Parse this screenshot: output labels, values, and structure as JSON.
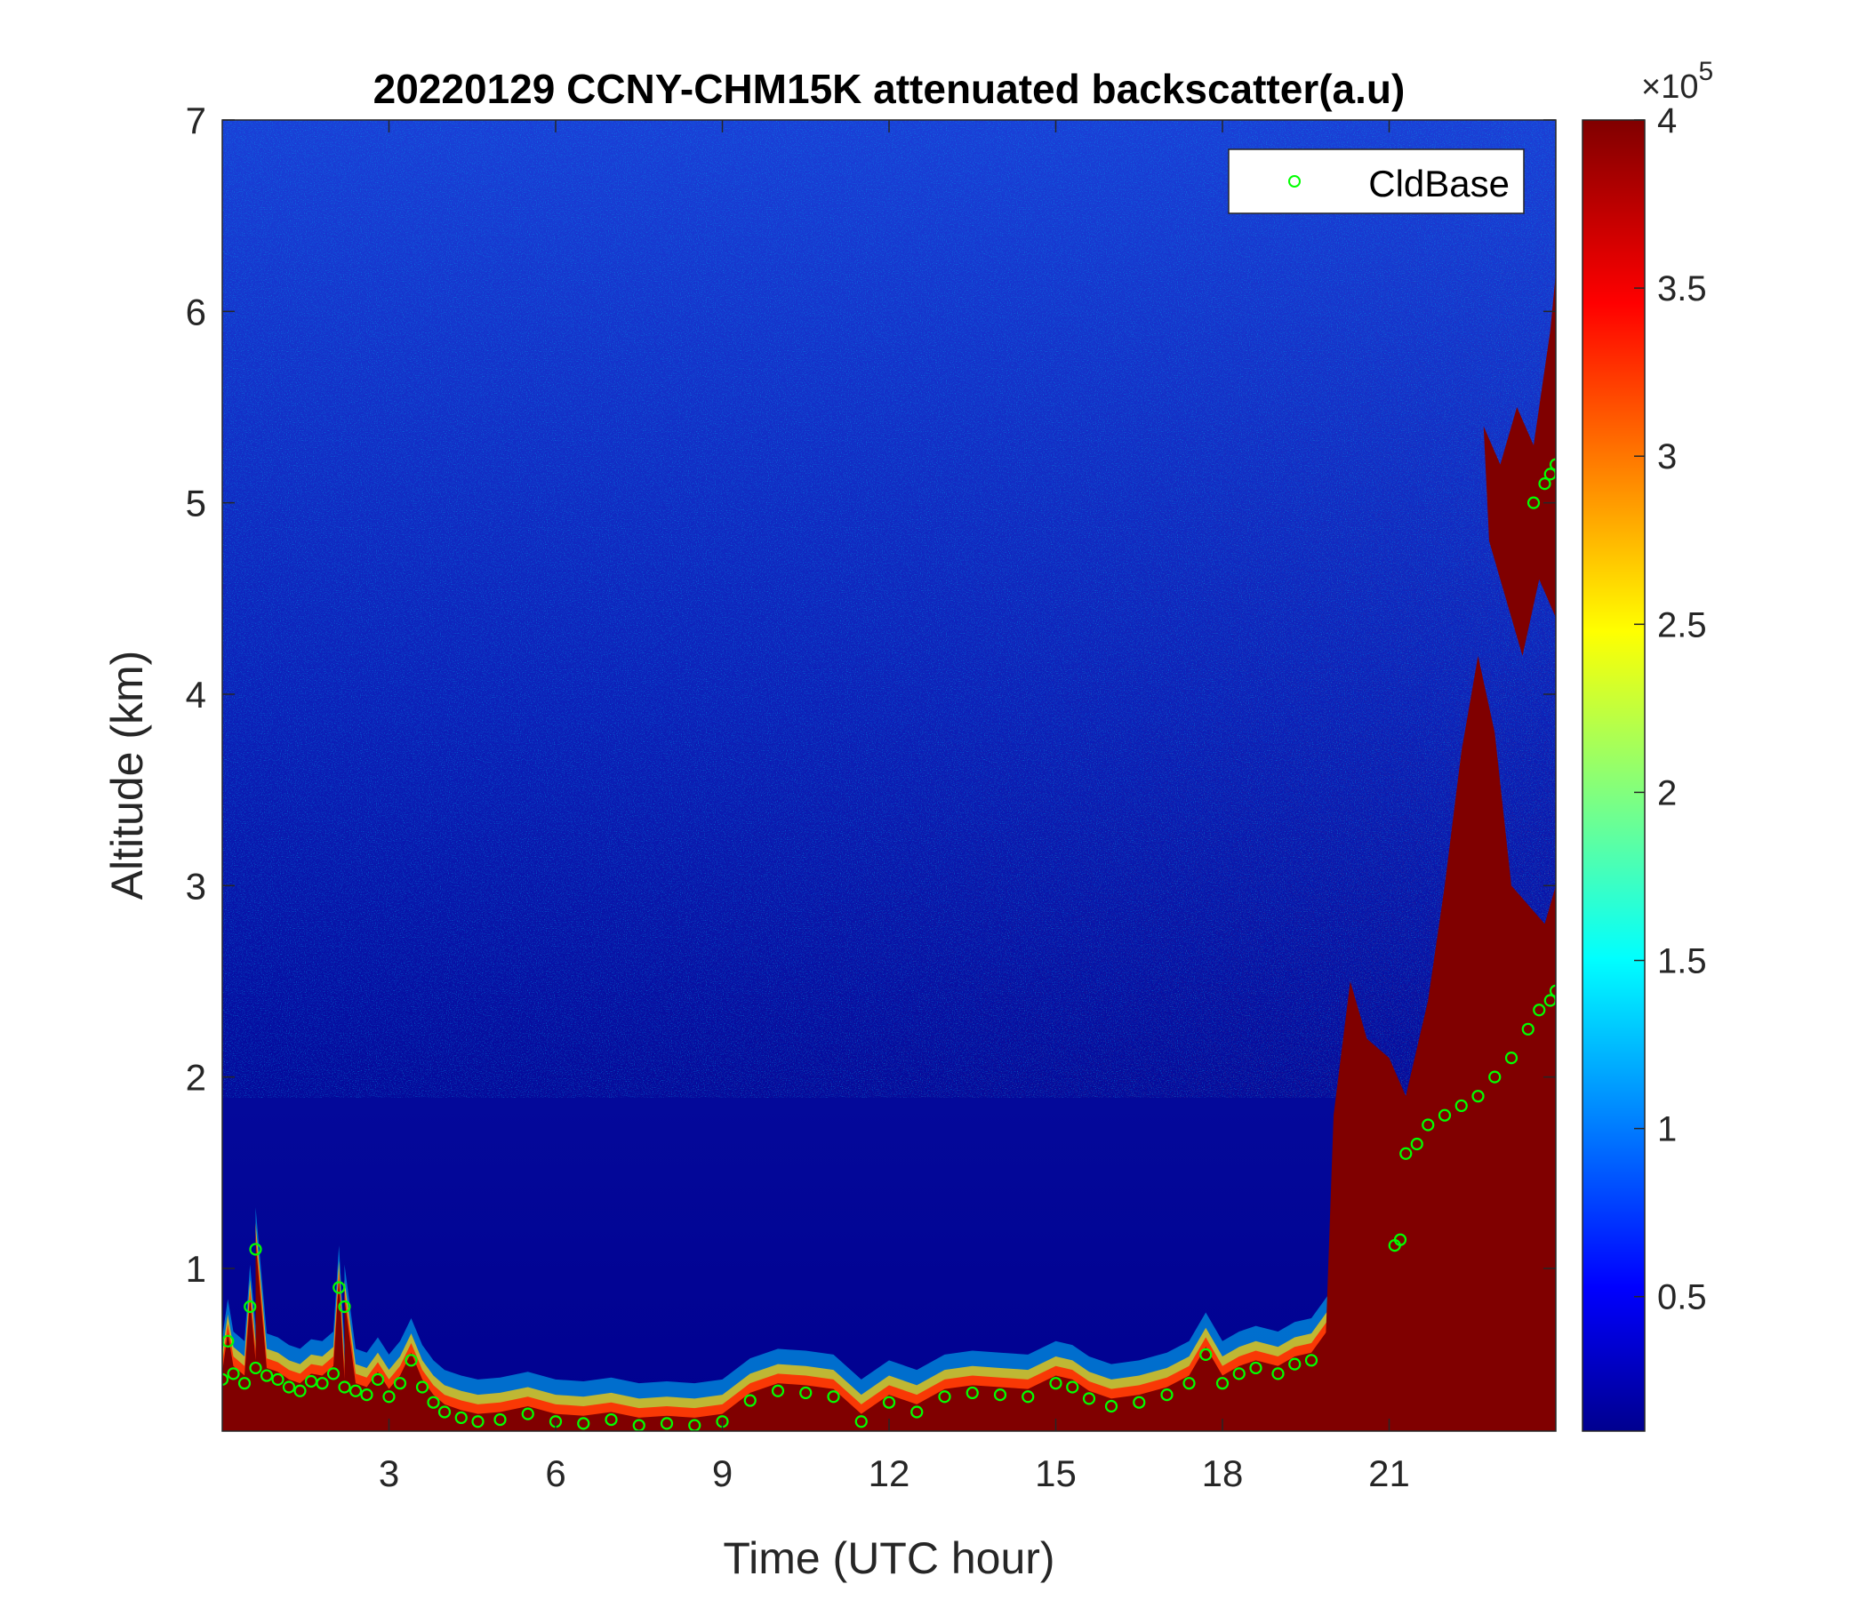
{
  "chart_data": {
    "type": "heatmap",
    "title": "20220129 CCNY-CHM15K attenuated backscatter(a.u)",
    "xlabel": "Time (UTC hour)",
    "ylabel": "Altitude (km)",
    "xlim": [
      0,
      24
    ],
    "ylim": [
      0.15,
      7
    ],
    "xticks": [
      3,
      6,
      9,
      12,
      15,
      18,
      21
    ],
    "yticks": [
      1,
      2,
      3,
      4,
      5,
      6,
      7
    ],
    "colormap": "jet",
    "colorbar": {
      "range": [
        0.1,
        4
      ],
      "ticks": [
        0.5,
        1,
        1.5,
        2,
        2.5,
        3,
        3.5,
        4
      ],
      "multiplier_label": "×10",
      "multiplier_exponent": "5"
    },
    "legend": {
      "position": "top-right",
      "entries": [
        "CldBase"
      ]
    },
    "grid": false,
    "series": [
      {
        "name": "CldBase",
        "marker": "circle",
        "color": "#00ff00",
        "x": [
          0.0,
          0.2,
          0.4,
          0.6,
          0.8,
          1.0,
          1.2,
          1.4,
          1.6,
          1.8,
          2.0,
          2.2,
          2.4,
          2.6,
          2.8,
          3.0,
          3.2,
          3.4,
          3.6,
          3.8,
          4.0,
          4.3,
          4.6,
          5.0,
          5.5,
          6.0,
          6.5,
          7.0,
          7.5,
          8.0,
          8.5,
          9.0,
          9.5,
          10.0,
          10.5,
          11.0,
          11.5,
          12.0,
          12.5,
          13.0,
          13.5,
          14.0,
          14.5,
          15.0,
          15.3,
          15.6,
          16.0,
          16.5,
          17.0,
          17.4,
          17.7,
          18.0,
          18.3,
          18.6,
          19.0,
          19.3,
          19.6,
          21.1,
          21.2,
          21.3,
          21.5,
          21.7,
          22.0,
          22.3,
          22.6,
          22.9,
          23.2,
          23.5,
          23.7,
          23.9,
          24.0,
          23.6,
          23.8,
          23.9,
          24.0,
          0.5,
          0.6,
          2.1,
          2.2,
          0.1
        ],
        "y": [
          0.42,
          0.45,
          0.4,
          0.48,
          0.44,
          0.42,
          0.38,
          0.36,
          0.41,
          0.4,
          0.45,
          0.38,
          0.36,
          0.34,
          0.42,
          0.33,
          0.4,
          0.52,
          0.38,
          0.3,
          0.25,
          0.22,
          0.2,
          0.21,
          0.24,
          0.2,
          0.19,
          0.21,
          0.18,
          0.19,
          0.18,
          0.2,
          0.31,
          0.36,
          0.35,
          0.33,
          0.2,
          0.3,
          0.25,
          0.33,
          0.35,
          0.34,
          0.33,
          0.4,
          0.38,
          0.32,
          0.28,
          0.3,
          0.34,
          0.4,
          0.55,
          0.4,
          0.45,
          0.48,
          0.45,
          0.5,
          0.52,
          1.12,
          1.15,
          1.6,
          1.65,
          1.75,
          1.8,
          1.85,
          1.9,
          2.0,
          2.1,
          2.25,
          2.35,
          2.4,
          2.45,
          5.0,
          5.1,
          5.15,
          5.2,
          0.8,
          1.1,
          0.9,
          0.8,
          0.62
        ]
      }
    ]
  }
}
